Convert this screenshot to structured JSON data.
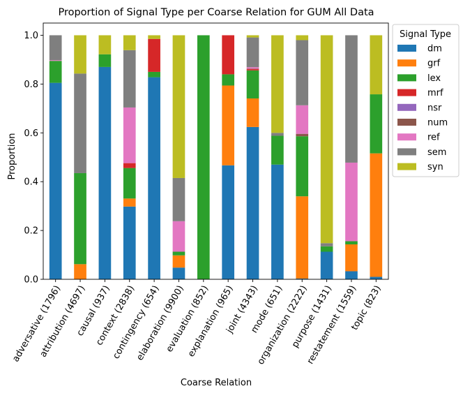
{
  "chart_data": {
    "type": "bar",
    "stacked": true,
    "title": "Proportion of Signal Type per Coarse Relation for GUM All Data",
    "xlabel": "Coarse Relation",
    "ylabel": "Proportion",
    "ylim": [
      0,
      1.05
    ],
    "yticks": [
      "0.0",
      "0.2",
      "0.4",
      "0.6",
      "0.8",
      "1.0"
    ],
    "grid": false,
    "legend_title": "Signal Type",
    "legend_position": "outside right, top",
    "categories": [
      "adversative (1796)",
      "attribution (4697)",
      "causal (937)",
      "context (2838)",
      "contingency (654)",
      "elaboration (9900)",
      "evaluation (852)",
      "explanation (965)",
      "joint (4343)",
      "mode (651)",
      "organization (2222)",
      "purpose (1431)",
      "restatement (1559)",
      "topic (823)"
    ],
    "series": [
      {
        "name": "dm",
        "color": "#1f77b4",
        "values": [
          0.805,
          0.0,
          0.87,
          0.298,
          0.828,
          0.048,
          0.0,
          0.467,
          0.624,
          0.47,
          0.003,
          0.113,
          0.033,
          0.01
        ]
      },
      {
        "name": "grf",
        "color": "#ff7f0e",
        "values": [
          0.0,
          0.062,
          0.0,
          0.033,
          0.0,
          0.05,
          0.0,
          0.327,
          0.117,
          0.0,
          0.337,
          0.0,
          0.11,
          0.506
        ]
      },
      {
        "name": "lex",
        "color": "#2ca02c",
        "values": [
          0.09,
          0.373,
          0.052,
          0.125,
          0.022,
          0.015,
          1.0,
          0.046,
          0.115,
          0.118,
          0.246,
          0.022,
          0.013,
          0.242
        ]
      },
      {
        "name": "mrf",
        "color": "#d62728",
        "values": [
          0.0,
          0.0,
          0.0,
          0.02,
          0.135,
          0.0,
          0.0,
          0.16,
          0.005,
          0.0,
          0.0,
          0.0,
          0.0,
          0.0
        ]
      },
      {
        "name": "nsr",
        "color": "#9467bd",
        "values": [
          0.0,
          0.0,
          0.0,
          0.0,
          0.0,
          0.0,
          0.0,
          0.0,
          0.0,
          0.0,
          0.0,
          0.0,
          0.0,
          0.0
        ]
      },
      {
        "name": "num",
        "color": "#8c564b",
        "values": [
          0.0,
          0.0,
          0.0,
          0.0,
          0.0,
          0.0,
          0.0,
          0.0,
          0.002,
          0.0,
          0.01,
          0.0,
          0.0,
          0.0
        ]
      },
      {
        "name": "ref",
        "color": "#e377c2",
        "values": [
          0.003,
          0.0,
          0.0,
          0.228,
          0.0,
          0.125,
          0.0,
          0.0,
          0.006,
          0.0,
          0.117,
          0.0,
          0.322,
          0.0
        ]
      },
      {
        "name": "sem",
        "color": "#7f7f7f",
        "values": [
          0.102,
          0.408,
          0.0,
          0.235,
          0.0,
          0.177,
          0.0,
          0.0,
          0.122,
          0.012,
          0.267,
          0.013,
          0.522,
          0.0
        ]
      },
      {
        "name": "syn",
        "color": "#bcbd22",
        "values": [
          0.0,
          0.157,
          0.078,
          0.061,
          0.015,
          0.585,
          0.0,
          0.0,
          0.009,
          0.4,
          0.02,
          0.852,
          0.0,
          0.242
        ]
      }
    ]
  }
}
